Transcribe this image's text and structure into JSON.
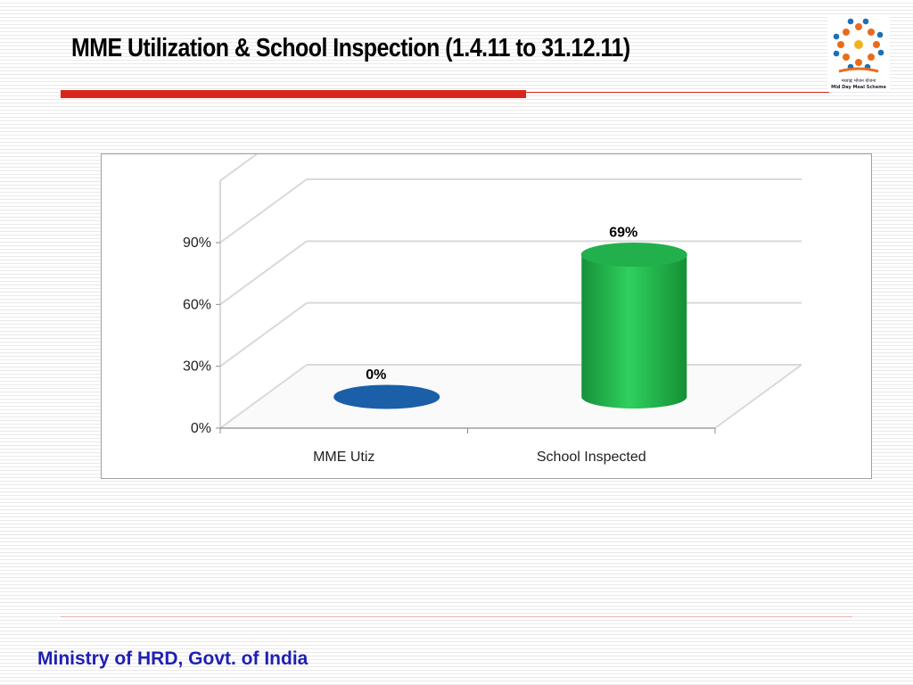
{
  "slide": {
    "title": "MME Utilization  & School Inspection (1.4.11 to 31.12.11)",
    "footer": "Ministry of HRD, Govt. of India"
  },
  "logo": {
    "hindi_text": "मध्याह्न भोजन योजना",
    "english_text": "Mid Day Meal Scheme"
  },
  "colors": {
    "title_bar": "#d9261c",
    "footer_text": "#1f1fb4",
    "series_1": "#1a5fa8",
    "series_2": "#22b04c"
  },
  "chart_data": {
    "type": "bar",
    "style": "3d-cylinder",
    "title": "",
    "xlabel": "",
    "ylabel": "",
    "categories": [
      "MME Utiz",
      "School Inspected"
    ],
    "values": [
      0,
      69
    ],
    "data_labels": [
      "0%",
      "69%"
    ],
    "bar_colors": [
      "#1a5fa8",
      "#22b04c"
    ],
    "ylim": [
      0,
      90
    ],
    "yticks": [
      0,
      30,
      60,
      90
    ],
    "ytick_labels": [
      "0%",
      "30%",
      "60%",
      "90%"
    ],
    "grid": true,
    "legend": "none"
  }
}
